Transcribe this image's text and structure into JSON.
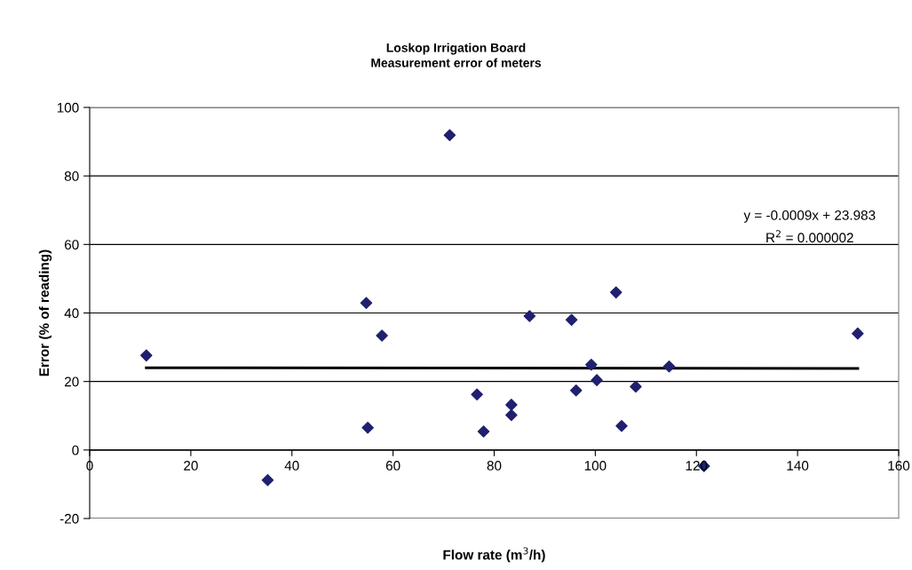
{
  "chart_data": {
    "type": "scatter",
    "title": "Loskop Irrigation Board",
    "subtitle": "Measurement error of meters",
    "xlabel": "Flow rate (m$^{3}$/h)",
    "ylabel": "Error (% of reading)",
    "series": [
      {
        "color": "#20206f",
        "marker": "diamond",
        "x": [
          11.2,
          35.2,
          54.7,
          57.8,
          71.2,
          55.0,
          76.6,
          77.9,
          83.4,
          83.4,
          87.0,
          95.3,
          104.1,
          99.2,
          114.6,
          100.3,
          96.2,
          108.0,
          105.2,
          121.5,
          151.9
        ],
        "values": [
          27.6,
          -8.8,
          42.9,
          33.4,
          91.9,
          6.5,
          16.2,
          5.4,
          13.2,
          10.2,
          39.1,
          38.0,
          46.0,
          24.9,
          24.4,
          20.4,
          17.4,
          18.5,
          7.0,
          -4.7,
          34.0
        ]
      },
      {
        "type": "line",
        "color": "#000000",
        "marker": "none",
        "line_style": "solid",
        "x": [
          11.2,
          151.9
        ],
        "values": [
          24.0,
          23.8
        ]
      }
    ],
    "annotations": [
      "y = -0.0009x + 23.983",
      "R$^{2}$ = 0.000002"
    ],
    "xlim": [
      0,
      160
    ],
    "xticks": [
      0,
      20,
      40,
      60,
      80,
      100,
      120,
      140,
      160
    ],
    "ylim": [
      -20,
      100
    ],
    "yticks": [
      -20,
      0,
      20,
      40,
      60,
      80,
      100
    ],
    "grid": "y",
    "legend": false
  }
}
